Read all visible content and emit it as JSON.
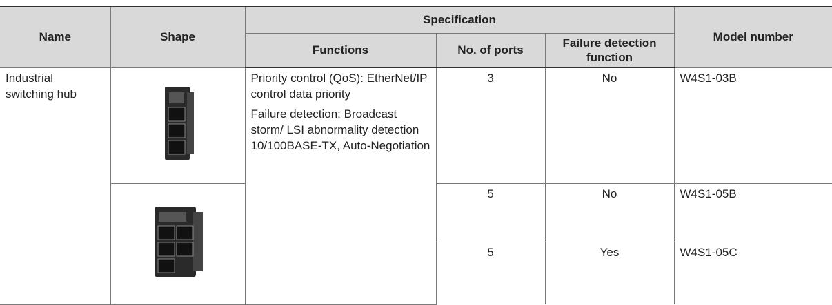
{
  "header": {
    "name": "Name",
    "shape": "Shape",
    "specification": "Specification",
    "functions": "Functions",
    "ports": "No. of ports",
    "failure_detection": "Failure detection function",
    "model_number": "Model number"
  },
  "body": {
    "name": "Industrial switching hub",
    "functions": [
      "Priority control (QoS): EtherNet/IP control data priority",
      "Failure detection: Broadcast storm/ LSI abnormality detection 10/100BASE-TX, Auto-Negotiation"
    ],
    "rows": [
      {
        "ports": 3,
        "failure_detection": "No",
        "model_number": "W4S1-03B"
      },
      {
        "ports": 5,
        "failure_detection": "No",
        "model_number": "W4S1-05B"
      },
      {
        "ports": 5,
        "failure_detection": "Yes",
        "model_number": "W4S1-05C"
      }
    ]
  }
}
